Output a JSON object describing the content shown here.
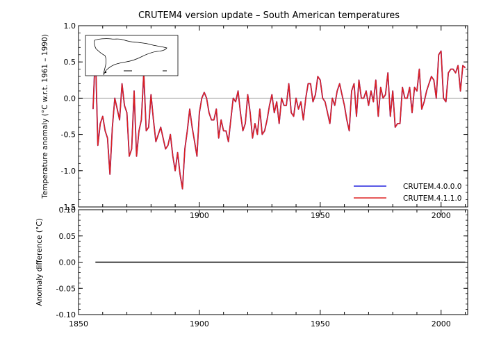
{
  "chart_data": [
    {
      "type": "line",
      "title": "CRUTEM4 version update – South American temperatures",
      "ylabel": "Temperature anomaly (°C w.r.t. 1961 – 1990)",
      "xlim": [
        1850,
        2011
      ],
      "ylim": [
        -1.5,
        1.0
      ],
      "y_ticks": [
        "1.0",
        "0.5",
        "0.0",
        "-0.5",
        "-1.0",
        "-1.5"
      ],
      "x_ticks": [
        "1900",
        "1950",
        "2000"
      ],
      "legend": {
        "position": "bottom-right"
      },
      "inset": "map of South America",
      "series": [
        {
          "name": "CRUTEM.4.0.0.0",
          "color": "#2222dd",
          "x": [
            1856,
            1857,
            1858,
            1859,
            1860,
            1861,
            1862,
            1863,
            1864,
            1865,
            1866,
            1867,
            1868,
            1869,
            1870,
            1871,
            1872,
            1873,
            1874,
            1875,
            1876,
            1877,
            1878,
            1879,
            1880,
            1881,
            1882,
            1883,
            1884,
            1885,
            1886,
            1887,
            1888,
            1889,
            1890,
            1891,
            1892,
            1893,
            1894,
            1895,
            1896,
            1897,
            1898,
            1899,
            1900,
            1901,
            1902,
            1903,
            1904,
            1905,
            1906,
            1907,
            1908,
            1909,
            1910,
            1911,
            1912,
            1913,
            1914,
            1915,
            1916,
            1917,
            1918,
            1919,
            1920,
            1921,
            1922,
            1923,
            1924,
            1925,
            1926,
            1927,
            1928,
            1929,
            1930,
            1931,
            1932,
            1933,
            1934,
            1935,
            1936,
            1937,
            1938,
            1939,
            1940,
            1941,
            1942,
            1943,
            1944,
            1945,
            1946,
            1947,
            1948,
            1949,
            1950,
            1951,
            1952,
            1953,
            1954,
            1955,
            1956,
            1957,
            1958,
            1959,
            1960,
            1961,
            1962,
            1963,
            1964,
            1965,
            1966,
            1967,
            1968,
            1969,
            1970,
            1971,
            1972,
            1973,
            1974,
            1975,
            1976,
            1977,
            1978,
            1979,
            1980,
            1981,
            1982,
            1983,
            1984,
            1985,
            1986,
            1987,
            1988,
            1989,
            1990,
            1991,
            1992,
            1993,
            1994,
            1995,
            1996,
            1997,
            1998,
            1999,
            2000,
            2001,
            2002,
            2003,
            2004,
            2005,
            2006,
            2007,
            2008,
            2009,
            2010
          ],
          "y": [
            -0.15,
            0.65,
            -0.65,
            -0.35,
            -0.25,
            -0.45,
            -0.55,
            -1.05,
            -0.4,
            0.0,
            -0.15,
            -0.3,
            0.2,
            -0.1,
            -0.2,
            -0.8,
            -0.7,
            0.1,
            -0.8,
            -0.45,
            -0.3,
            0.35,
            -0.45,
            -0.4,
            0.05,
            -0.3,
            -0.6,
            -0.5,
            -0.4,
            -0.55,
            -0.7,
            -0.65,
            -0.5,
            -0.8,
            -1.0,
            -0.75,
            -1.05,
            -1.25,
            -0.7,
            -0.45,
            -0.15,
            -0.4,
            -0.6,
            -0.8,
            -0.2,
            0.0,
            0.08,
            0.0,
            -0.2,
            -0.3,
            -0.3,
            -0.15,
            -0.55,
            -0.3,
            -0.45,
            -0.45,
            -0.6,
            -0.3,
            0.0,
            -0.05,
            0.1,
            -0.2,
            -0.45,
            -0.35,
            0.05,
            -0.2,
            -0.55,
            -0.35,
            -0.5,
            -0.15,
            -0.5,
            -0.45,
            -0.3,
            -0.1,
            0.05,
            -0.2,
            -0.05,
            -0.35,
            0.0,
            -0.1,
            -0.1,
            0.2,
            -0.2,
            -0.25,
            0.0,
            -0.15,
            -0.05,
            -0.3,
            0.0,
            0.2,
            0.2,
            -0.05,
            0.05,
            0.3,
            0.25,
            0.0,
            -0.05,
            -0.2,
            -0.35,
            0.0,
            -0.1,
            0.1,
            0.2,
            0.05,
            -0.1,
            -0.3,
            -0.45,
            0.1,
            0.2,
            -0.25,
            0.25,
            0.0,
            0.0,
            0.1,
            -0.1,
            0.1,
            -0.05,
            0.25,
            -0.25,
            0.15,
            0.0,
            0.05,
            0.35,
            -0.25,
            0.1,
            -0.4,
            -0.35,
            -0.35,
            0.15,
            0.0,
            0.0,
            0.15,
            -0.2,
            0.15,
            0.1,
            0.4,
            -0.15,
            -0.05,
            0.1,
            0.2,
            0.3,
            0.25,
            0.0,
            0.6,
            0.65,
            0.0,
            -0.05,
            0.35,
            0.4,
            0.4,
            0.35,
            0.45,
            0.1,
            0.45,
            0.42
          ]
        },
        {
          "name": "CRUTEM.4.1.1.0",
          "color": "#dd2222",
          "x": [
            1856,
            1857,
            1858,
            1859,
            1860,
            1861,
            1862,
            1863,
            1864,
            1865,
            1866,
            1867,
            1868,
            1869,
            1870,
            1871,
            1872,
            1873,
            1874,
            1875,
            1876,
            1877,
            1878,
            1879,
            1880,
            1881,
            1882,
            1883,
            1884,
            1885,
            1886,
            1887,
            1888,
            1889,
            1890,
            1891,
            1892,
            1893,
            1894,
            1895,
            1896,
            1897,
            1898,
            1899,
            1900,
            1901,
            1902,
            1903,
            1904,
            1905,
            1906,
            1907,
            1908,
            1909,
            1910,
            1911,
            1912,
            1913,
            1914,
            1915,
            1916,
            1917,
            1918,
            1919,
            1920,
            1921,
            1922,
            1923,
            1924,
            1925,
            1926,
            1927,
            1928,
            1929,
            1930,
            1931,
            1932,
            1933,
            1934,
            1935,
            1936,
            1937,
            1938,
            1939,
            1940,
            1941,
            1942,
            1943,
            1944,
            1945,
            1946,
            1947,
            1948,
            1949,
            1950,
            1951,
            1952,
            1953,
            1954,
            1955,
            1956,
            1957,
            1958,
            1959,
            1960,
            1961,
            1962,
            1963,
            1964,
            1965,
            1966,
            1967,
            1968,
            1969,
            1970,
            1971,
            1972,
            1973,
            1974,
            1975,
            1976,
            1977,
            1978,
            1979,
            1980,
            1981,
            1982,
            1983,
            1984,
            1985,
            1986,
            1987,
            1988,
            1989,
            1990,
            1991,
            1992,
            1993,
            1994,
            1995,
            1996,
            1997,
            1998,
            1999,
            2000,
            2001,
            2002,
            2003,
            2004,
            2005,
            2006,
            2007,
            2008,
            2009,
            2010
          ],
          "y": [
            -0.15,
            0.65,
            -0.65,
            -0.35,
            -0.25,
            -0.45,
            -0.55,
            -1.05,
            -0.4,
            0.0,
            -0.15,
            -0.3,
            0.2,
            -0.1,
            -0.2,
            -0.8,
            -0.7,
            0.1,
            -0.8,
            -0.45,
            -0.3,
            0.35,
            -0.45,
            -0.4,
            0.05,
            -0.3,
            -0.6,
            -0.5,
            -0.4,
            -0.55,
            -0.7,
            -0.65,
            -0.5,
            -0.8,
            -1.0,
            -0.75,
            -1.05,
            -1.25,
            -0.7,
            -0.45,
            -0.15,
            -0.4,
            -0.6,
            -0.8,
            -0.2,
            0.0,
            0.08,
            0.0,
            -0.2,
            -0.3,
            -0.3,
            -0.15,
            -0.55,
            -0.3,
            -0.45,
            -0.45,
            -0.6,
            -0.3,
            0.0,
            -0.05,
            0.1,
            -0.2,
            -0.45,
            -0.35,
            0.05,
            -0.2,
            -0.55,
            -0.35,
            -0.5,
            -0.15,
            -0.5,
            -0.45,
            -0.3,
            -0.1,
            0.05,
            -0.2,
            -0.05,
            -0.35,
            0.0,
            -0.1,
            -0.1,
            0.2,
            -0.2,
            -0.25,
            0.0,
            -0.15,
            -0.05,
            -0.3,
            0.0,
            0.2,
            0.2,
            -0.05,
            0.05,
            0.3,
            0.25,
            0.0,
            -0.05,
            -0.2,
            -0.35,
            0.0,
            -0.1,
            0.1,
            0.2,
            0.05,
            -0.1,
            -0.3,
            -0.45,
            0.1,
            0.2,
            -0.25,
            0.25,
            0.0,
            0.0,
            0.1,
            -0.1,
            0.1,
            -0.05,
            0.25,
            -0.25,
            0.15,
            0.0,
            0.05,
            0.35,
            -0.25,
            0.1,
            -0.4,
            -0.35,
            -0.35,
            0.15,
            0.0,
            0.0,
            0.15,
            -0.2,
            0.15,
            0.1,
            0.4,
            -0.15,
            -0.05,
            0.1,
            0.2,
            0.3,
            0.25,
            0.0,
            0.6,
            0.65,
            0.0,
            -0.05,
            0.35,
            0.4,
            0.4,
            0.35,
            0.45,
            0.1,
            0.45,
            0.42
          ]
        }
      ]
    },
    {
      "type": "line",
      "xlabel": "",
      "ylabel": "Anomaly difference (°C)",
      "xlim": [
        1850,
        2011
      ],
      "ylim": [
        -0.1,
        0.1
      ],
      "y_ticks": [
        "0.10",
        "0.05",
        "0.00",
        "-0.05",
        "-0.10"
      ],
      "x_ticks": [
        "1850",
        "1900",
        "1950",
        "2000"
      ],
      "series": [
        {
          "color": "#000000",
          "x": [
            1857,
            2010
          ],
          "y": [
            0.0,
            0.0
          ]
        }
      ]
    }
  ]
}
